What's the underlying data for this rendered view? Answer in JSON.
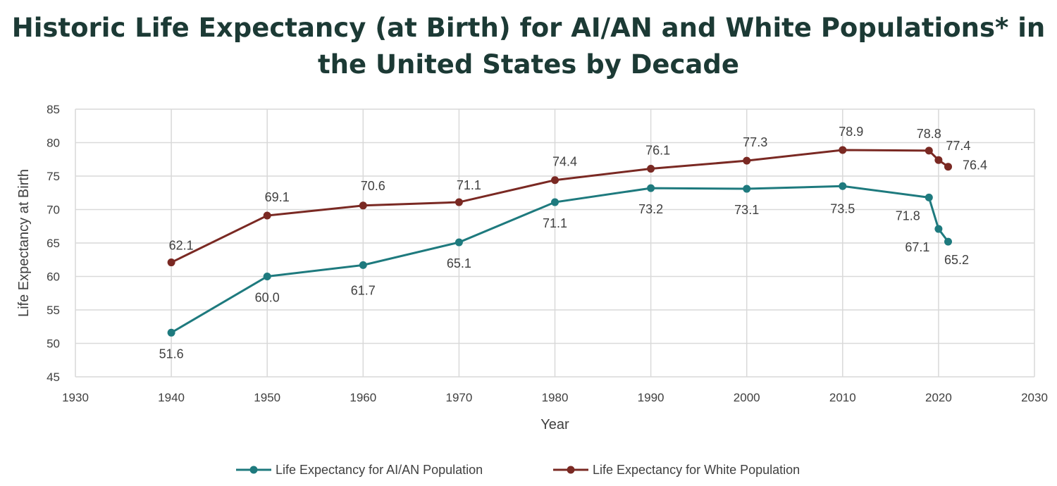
{
  "chart_data": {
    "type": "line",
    "title": "Historic Life Expectancy (at Birth) for AI/AN and White Populations* in the United States by Decade",
    "xlabel": "Year",
    "ylabel": "Life Expectancy at Birth",
    "xlim": [
      1930,
      2030
    ],
    "ylim": [
      45,
      85
    ],
    "xticks": [
      1930,
      1940,
      1950,
      1960,
      1970,
      1980,
      1990,
      2000,
      2010,
      2020,
      2030
    ],
    "yticks": [
      45,
      50,
      55,
      60,
      65,
      70,
      75,
      80,
      85
    ],
    "grid": true,
    "legend_position": "bottom",
    "x": [
      1940,
      1950,
      1960,
      1970,
      1980,
      1990,
      2000,
      2010,
      2019,
      2020,
      2021
    ],
    "series": [
      {
        "name": "Life Expectancy for AI/AN Population",
        "color": "#1e7a7e",
        "values": [
          51.6,
          60.0,
          61.7,
          65.1,
          71.1,
          73.2,
          73.1,
          73.5,
          71.8,
          67.1,
          65.2
        ]
      },
      {
        "name": "Life Expectancy for White Population",
        "color": "#7a2923",
        "values": [
          62.1,
          69.1,
          70.6,
          71.1,
          74.4,
          76.1,
          77.3,
          78.9,
          78.8,
          77.4,
          76.4
        ]
      }
    ]
  }
}
